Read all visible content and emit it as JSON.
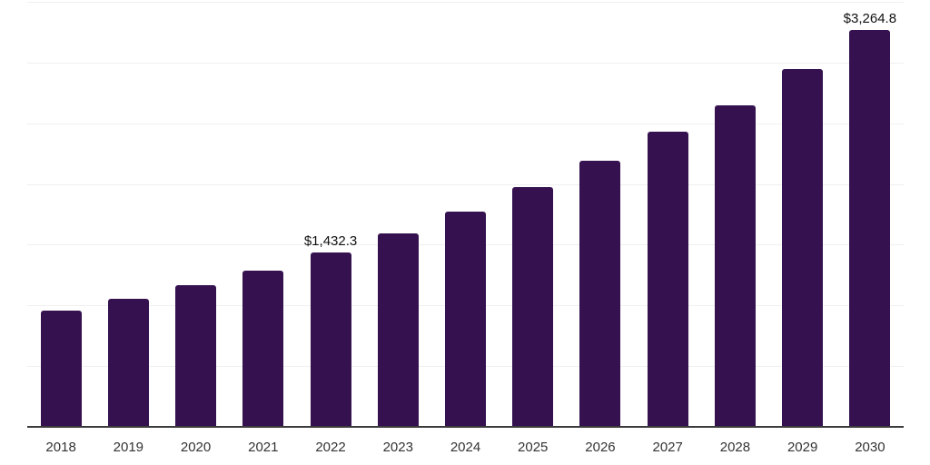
{
  "chart_data": {
    "type": "bar",
    "title": "",
    "xlabel": "",
    "ylabel": "",
    "categories": [
      "2018",
      "2019",
      "2020",
      "2021",
      "2022",
      "2023",
      "2024",
      "2025",
      "2026",
      "2027",
      "2028",
      "2029",
      "2030"
    ],
    "values": [
      955,
      1055,
      1170,
      1285,
      1432.3,
      1590,
      1775,
      1975,
      2190,
      2430,
      2650,
      2945,
      3264.8
    ],
    "data_labels": {
      "2022": "$1,432.3",
      "2030": "$3,264.8"
    },
    "ylim": [
      0,
      3500
    ],
    "gridline_step": 500,
    "grid": "horizontal-only",
    "legend": "none",
    "y_tick_labels_visible": false,
    "colors": {
      "bar": "#35124F",
      "axis_line": "#3b3b3b",
      "gridline": "#f0f0f0",
      "data_label_text": "#111111",
      "tick_label_text": "#333333",
      "background": "#ffffff"
    }
  }
}
